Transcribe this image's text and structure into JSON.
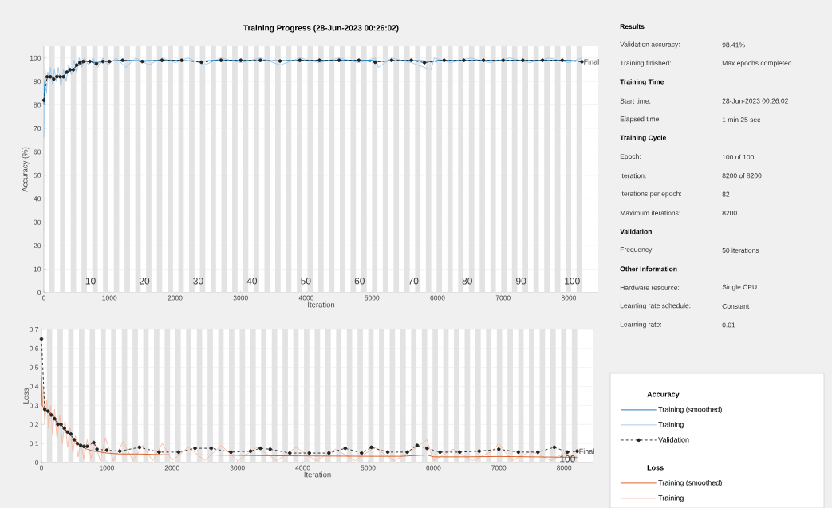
{
  "chart_data": [
    {
      "type": "line",
      "title": "Training Progress (28-Jun-2023 00:26:02)",
      "xlabel": "Iteration",
      "ylabel": "Accuracy (%)",
      "xlim": [
        0,
        8450
      ],
      "ylim": [
        0,
        105
      ],
      "xticks": [
        0,
        1000,
        2000,
        3000,
        4000,
        5000,
        6000,
        7000,
        8000
      ],
      "yticks": [
        0,
        10,
        20,
        30,
        40,
        50,
        60,
        70,
        80,
        90,
        100
      ],
      "grid": "y",
      "legend": "right",
      "legend_title": "Accuracy",
      "bands": [
        {
          "axis": "x",
          "from": 82,
          "to": 164
        },
        {
          "axis": "x",
          "from": 246,
          "to": 328
        },
        {
          "axis": "x",
          "from": 410,
          "to": 492
        },
        {
          "axis": "x",
          "from": 574,
          "to": 656
        },
        {
          "axis": "x",
          "from": 738,
          "to": 820
        },
        {
          "axis": "x",
          "from": 902,
          "to": 984
        },
        {
          "axis": "x",
          "from": 1066,
          "to": 1148
        },
        {
          "axis": "x",
          "from": 1230,
          "to": 1312
        },
        {
          "axis": "x",
          "from": 1394,
          "to": 1476
        },
        {
          "axis": "x",
          "from": 1558,
          "to": 1640
        },
        {
          "axis": "x",
          "from": 1722,
          "to": 1804
        },
        {
          "axis": "x",
          "from": 1886,
          "to": 1968
        },
        {
          "axis": "x",
          "from": 2050,
          "to": 2132
        },
        {
          "axis": "x",
          "from": 2214,
          "to": 2296
        },
        {
          "axis": "x",
          "from": 2378,
          "to": 2460
        },
        {
          "axis": "x",
          "from": 2542,
          "to": 2624
        },
        {
          "axis": "x",
          "from": 2706,
          "to": 2788
        },
        {
          "axis": "x",
          "from": 2870,
          "to": 2952
        },
        {
          "axis": "x",
          "from": 3034,
          "to": 3116
        },
        {
          "axis": "x",
          "from": 3198,
          "to": 3280
        },
        {
          "axis": "x",
          "from": 3362,
          "to": 3444
        },
        {
          "axis": "x",
          "from": 3526,
          "to": 3608
        },
        {
          "axis": "x",
          "from": 3690,
          "to": 3772
        },
        {
          "axis": "x",
          "from": 3854,
          "to": 3936
        },
        {
          "axis": "x",
          "from": 4018,
          "to": 4100
        },
        {
          "axis": "x",
          "from": 4182,
          "to": 4264
        },
        {
          "axis": "x",
          "from": 4346,
          "to": 4428
        },
        {
          "axis": "x",
          "from": 4510,
          "to": 4592
        },
        {
          "axis": "x",
          "from": 4674,
          "to": 4756
        },
        {
          "axis": "x",
          "from": 4838,
          "to": 4920
        },
        {
          "axis": "x",
          "from": 5002,
          "to": 5084
        },
        {
          "axis": "x",
          "from": 5166,
          "to": 5248
        },
        {
          "axis": "x",
          "from": 5330,
          "to": 5412
        },
        {
          "axis": "x",
          "from": 5494,
          "to": 5576
        },
        {
          "axis": "x",
          "from": 5658,
          "to": 5740
        },
        {
          "axis": "x",
          "from": 5822,
          "to": 5904
        },
        {
          "axis": "x",
          "from": 5986,
          "to": 6068
        },
        {
          "axis": "x",
          "from": 6150,
          "to": 6232
        },
        {
          "axis": "x",
          "from": 6314,
          "to": 6396
        },
        {
          "axis": "x",
          "from": 6478,
          "to": 6560
        },
        {
          "axis": "x",
          "from": 6642,
          "to": 6724
        },
        {
          "axis": "x",
          "from": 6806,
          "to": 6888
        },
        {
          "axis": "x",
          "from": 6970,
          "to": 7052
        },
        {
          "axis": "x",
          "from": 7134,
          "to": 7216
        },
        {
          "axis": "x",
          "from": 7298,
          "to": 7380
        },
        {
          "axis": "x",
          "from": 7462,
          "to": 7544
        },
        {
          "axis": "x",
          "from": 7626,
          "to": 7708
        },
        {
          "axis": "x",
          "from": 7790,
          "to": 7872
        },
        {
          "axis": "x",
          "from": 7954,
          "to": 8036
        },
        {
          "axis": "x",
          "from": 8118,
          "to": 8200
        }
      ],
      "annotations": [
        {
          "text": "Final",
          "x": 8200,
          "y": 98.4
        },
        {
          "text": "10",
          "x": 820,
          "y": 5
        },
        {
          "text": "20",
          "x": 1640,
          "y": 5
        },
        {
          "text": "30",
          "x": 2460,
          "y": 5
        },
        {
          "text": "40",
          "x": 3280,
          "y": 5
        },
        {
          "text": "50",
          "x": 4100,
          "y": 5
        },
        {
          "text": "60",
          "x": 4920,
          "y": 5
        },
        {
          "text": "70",
          "x": 5740,
          "y": 5
        },
        {
          "text": "80",
          "x": 6560,
          "y": 5
        },
        {
          "text": "90",
          "x": 7380,
          "y": 5
        },
        {
          "text": "100",
          "x": 8200,
          "y": 5
        }
      ],
      "series": [
        {
          "name": "Training (smoothed)",
          "color": "#0072bd",
          "line_style": "solid",
          "marker": "none",
          "x": [
            0,
            10,
            20,
            50,
            100,
            150,
            200,
            250,
            300,
            350,
            400,
            450,
            500,
            550,
            600,
            650,
            700,
            800,
            900,
            1000,
            1200,
            1500,
            1800,
            2000,
            2400,
            2600,
            3000,
            3500,
            4000,
            4500,
            5000,
            5100,
            5500,
            5800,
            5900,
            6000,
            6500,
            7000,
            7500,
            8000,
            8200
          ],
          "values": [
            80,
            88,
            92,
            91.5,
            92.5,
            91.5,
            93,
            92,
            92.5,
            93.5,
            95,
            95.5,
            96.5,
            97,
            98,
            98.5,
            98.5,
            98,
            98.5,
            98.7,
            99,
            98.8,
            99,
            99,
            98.6,
            99,
            99,
            98.8,
            99,
            99,
            99,
            98.5,
            99,
            98.8,
            98.3,
            99,
            99,
            99,
            99,
            99,
            98.6
          ]
        },
        {
          "name": "Training",
          "color": "#9dc6e8",
          "line_style": "solid",
          "marker": "none",
          "x": [
            0,
            20,
            40,
            60,
            80,
            100,
            130,
            160,
            190,
            220,
            260,
            300,
            340,
            380,
            420,
            460,
            500,
            540,
            580,
            620,
            680,
            750,
            820,
            900,
            980,
            1100,
            1250,
            1400,
            1600,
            1800,
            2000,
            2200,
            2450,
            2700,
            3000,
            3300,
            3600,
            3900,
            4200,
            4500,
            4800,
            5050,
            5100,
            5300,
            5600,
            5900,
            5950,
            6200,
            6500,
            6800,
            7100,
            7400,
            7700,
            8000,
            8200
          ],
          "values": [
            66,
            95,
            85,
            94,
            90,
            96,
            89,
            95,
            90,
            96,
            88,
            95,
            90,
            97,
            93,
            99,
            94,
            100,
            96,
            100,
            97,
            100,
            96,
            100,
            97,
            100,
            96,
            100,
            97,
            100,
            98,
            100,
            97,
            100,
            98,
            100,
            97,
            100,
            98,
            100,
            98,
            100,
            96,
            100,
            98,
            95,
            100,
            98,
            100,
            98,
            100,
            98,
            100,
            98,
            100
          ]
        },
        {
          "name": "Validation",
          "color": "#222222",
          "line_style": "dashed",
          "marker": "circle",
          "x": [
            0,
            50,
            100,
            150,
            200,
            250,
            300,
            350,
            400,
            450,
            500,
            550,
            600,
            700,
            800,
            900,
            1000,
            1200,
            1500,
            1800,
            2100,
            2400,
            2700,
            3000,
            3300,
            3600,
            3900,
            4200,
            4500,
            4800,
            5050,
            5300,
            5600,
            5800,
            6100,
            6400,
            6700,
            7000,
            7300,
            7600,
            7900,
            8200
          ],
          "values": [
            82,
            92,
            92,
            91,
            92,
            92,
            92,
            94,
            95,
            95,
            97,
            98,
            98.5,
            98.5,
            97.5,
            98.5,
            98.5,
            99,
            98.5,
            99,
            99,
            98.2,
            99,
            99,
            99,
            98.7,
            99,
            99,
            99,
            99,
            98.2,
            99,
            99,
            98,
            99,
            99,
            99,
            99,
            99,
            99,
            99,
            98.4
          ]
        }
      ]
    },
    {
      "type": "line",
      "xlabel": "Iteration",
      "ylabel": "Loss",
      "xlim": [
        0,
        8450
      ],
      "ylim": [
        0,
        0.7
      ],
      "xticks": [
        0,
        1000,
        2000,
        3000,
        4000,
        5000,
        6000,
        7000,
        8000
      ],
      "yticks": [
        0,
        0.1,
        0.2,
        0.3,
        0.4,
        0.5,
        0.6,
        0.7
      ],
      "grid": "y",
      "legend": "right",
      "legend_title": "Loss",
      "bands": [
        {
          "axis": "x",
          "from": 82,
          "to": 164
        },
        {
          "axis": "x",
          "from": 246,
          "to": 328
        },
        {
          "axis": "x",
          "from": 410,
          "to": 492
        },
        {
          "axis": "x",
          "from": 574,
          "to": 656
        },
        {
          "axis": "x",
          "from": 738,
          "to": 820
        },
        {
          "axis": "x",
          "from": 902,
          "to": 984
        },
        {
          "axis": "x",
          "from": 1066,
          "to": 1148
        },
        {
          "axis": "x",
          "from": 1230,
          "to": 1312
        },
        {
          "axis": "x",
          "from": 1394,
          "to": 1476
        },
        {
          "axis": "x",
          "from": 1558,
          "to": 1640
        },
        {
          "axis": "x",
          "from": 1722,
          "to": 1804
        },
        {
          "axis": "x",
          "from": 1886,
          "to": 1968
        },
        {
          "axis": "x",
          "from": 2050,
          "to": 2132
        },
        {
          "axis": "x",
          "from": 2214,
          "to": 2296
        },
        {
          "axis": "x",
          "from": 2378,
          "to": 2460
        },
        {
          "axis": "x",
          "from": 2542,
          "to": 2624
        },
        {
          "axis": "x",
          "from": 2706,
          "to": 2788
        },
        {
          "axis": "x",
          "from": 2870,
          "to": 2952
        },
        {
          "axis": "x",
          "from": 3034,
          "to": 3116
        },
        {
          "axis": "x",
          "from": 3198,
          "to": 3280
        },
        {
          "axis": "x",
          "from": 3362,
          "to": 3444
        },
        {
          "axis": "x",
          "from": 3526,
          "to": 3608
        },
        {
          "axis": "x",
          "from": 3690,
          "to": 3772
        },
        {
          "axis": "x",
          "from": 3854,
          "to": 3936
        },
        {
          "axis": "x",
          "from": 4018,
          "to": 4100
        },
        {
          "axis": "x",
          "from": 4182,
          "to": 4264
        },
        {
          "axis": "x",
          "from": 4346,
          "to": 4428
        },
        {
          "axis": "x",
          "from": 4510,
          "to": 4592
        },
        {
          "axis": "x",
          "from": 4674,
          "to": 4756
        },
        {
          "axis": "x",
          "from": 4838,
          "to": 4920
        },
        {
          "axis": "x",
          "from": 5002,
          "to": 5084
        },
        {
          "axis": "x",
          "from": 5166,
          "to": 5248
        },
        {
          "axis": "x",
          "from": 5330,
          "to": 5412
        },
        {
          "axis": "x",
          "from": 5494,
          "to": 5576
        },
        {
          "axis": "x",
          "from": 5658,
          "to": 5740
        },
        {
          "axis": "x",
          "from": 5822,
          "to": 5904
        },
        {
          "axis": "x",
          "from": 5986,
          "to": 6068
        },
        {
          "axis": "x",
          "from": 6150,
          "to": 6232
        },
        {
          "axis": "x",
          "from": 6314,
          "to": 6396
        },
        {
          "axis": "x",
          "from": 6478,
          "to": 6560
        },
        {
          "axis": "x",
          "from": 6642,
          "to": 6724
        },
        {
          "axis": "x",
          "from": 6806,
          "to": 6888
        },
        {
          "axis": "x",
          "from": 6970,
          "to": 7052
        },
        {
          "axis": "x",
          "from": 7134,
          "to": 7216
        },
        {
          "axis": "x",
          "from": 7298,
          "to": 7380
        },
        {
          "axis": "x",
          "from": 7462,
          "to": 7544
        },
        {
          "axis": "x",
          "from": 7626,
          "to": 7708
        },
        {
          "axis": "x",
          "from": 7790,
          "to": 7872
        },
        {
          "axis": "x",
          "from": 7954,
          "to": 8036
        },
        {
          "axis": "x",
          "from": 8118,
          "to": 8200
        }
      ],
      "annotations": [
        {
          "text": "Final",
          "x": 8200,
          "y": 0.06
        },
        {
          "text": "100",
          "x": 8200,
          "y": 0.02
        }
      ],
      "series": [
        {
          "name": "Training (smoothed)",
          "color": "#d95319",
          "line_style": "solid",
          "marker": "none",
          "x": [
            0,
            10,
            50,
            100,
            150,
            200,
            250,
            300,
            350,
            400,
            450,
            500,
            550,
            600,
            700,
            800,
            1000,
            1200,
            1500,
            2000,
            2500,
            3000,
            3500,
            4000,
            4500,
            5000,
            5500,
            5900,
            6000,
            6500,
            7000,
            7500,
            8000,
            8200
          ],
          "values": [
            0.45,
            0.3,
            0.28,
            0.27,
            0.26,
            0.24,
            0.21,
            0.2,
            0.18,
            0.16,
            0.14,
            0.12,
            0.1,
            0.085,
            0.07,
            0.06,
            0.05,
            0.045,
            0.045,
            0.04,
            0.04,
            0.038,
            0.036,
            0.035,
            0.034,
            0.033,
            0.033,
            0.04,
            0.03,
            0.03,
            0.032,
            0.03,
            0.028,
            0.028
          ]
        },
        {
          "name": "Training",
          "color": "#f4b9a0",
          "line_style": "solid",
          "marker": "none",
          "x": [
            0,
            15,
            30,
            50,
            80,
            110,
            140,
            170,
            200,
            240,
            280,
            320,
            360,
            400,
            440,
            480,
            520,
            560,
            600,
            650,
            700,
            760,
            820,
            900,
            980,
            1100,
            1250,
            1400,
            1550,
            1700,
            1850,
            2000,
            2250,
            2500,
            2750,
            3000,
            3300,
            3600,
            3900,
            4200,
            4500,
            4800,
            5100,
            5400,
            5700,
            5900,
            6000,
            6300,
            6600,
            6900,
            7000,
            7200,
            7500,
            7800,
            8000,
            8200
          ],
          "values": [
            0.62,
            0.3,
            0.4,
            0.2,
            0.33,
            0.18,
            0.3,
            0.15,
            0.28,
            0.12,
            0.25,
            0.1,
            0.22,
            0.08,
            0.18,
            0.05,
            0.14,
            0.03,
            0.1,
            0.02,
            0.12,
            0.02,
            0.1,
            0.01,
            0.13,
            0.01,
            0.11,
            0.01,
            0.09,
            0.01,
            0.1,
            0.01,
            0.08,
            0.01,
            0.09,
            0.01,
            0.08,
            0.01,
            0.08,
            0.01,
            0.07,
            0.01,
            0.08,
            0.01,
            0.07,
            0.12,
            0.01,
            0.07,
            0.01,
            0.06,
            0.1,
            0.01,
            0.06,
            0.01,
            0.05,
            0.02
          ]
        },
        {
          "color": "#222222",
          "line_style": "dashed",
          "marker": "circle",
          "x": [
            0,
            50,
            100,
            150,
            200,
            250,
            300,
            350,
            400,
            450,
            500,
            550,
            600,
            650,
            700,
            800,
            850,
            1000,
            1200,
            1500,
            1800,
            2100,
            2350,
            2600,
            2900,
            3200,
            3350,
            3500,
            3800,
            4100,
            4400,
            4650,
            4900,
            5050,
            5300,
            5600,
            5750,
            5900,
            6100,
            6400,
            6700,
            7000,
            7300,
            7600,
            7850,
            8050,
            8200
          ],
          "values": [
            0.65,
            0.28,
            0.27,
            0.25,
            0.23,
            0.2,
            0.2,
            0.18,
            0.16,
            0.15,
            0.12,
            0.1,
            0.09,
            0.085,
            0.085,
            0.105,
            0.07,
            0.065,
            0.06,
            0.08,
            0.055,
            0.055,
            0.075,
            0.075,
            0.055,
            0.06,
            0.075,
            0.07,
            0.05,
            0.05,
            0.05,
            0.075,
            0.05,
            0.08,
            0.055,
            0.055,
            0.09,
            0.075,
            0.055,
            0.055,
            0.06,
            0.07,
            0.055,
            0.055,
            0.08,
            0.055,
            0.06
          ]
        }
      ]
    },
    {
      "type": "other",
      "annotations": [
        "Results",
        "Validation accuracy:",
        "98.41%",
        "Training finished:",
        "Max epochs completed",
        "Training Time",
        "Start time:",
        "28-Jun-2023 00:26:02",
        "Elapsed time:",
        "1 min 25 sec",
        "Training Cycle",
        "Epoch:",
        "100 of 100",
        "Iteration:",
        "8200 of 8200",
        "Iterations per epoch:",
        "82",
        "Maximum iterations:",
        "8200",
        "Validation",
        "Frequency:",
        "50 iterations",
        "Other Information",
        "Hardware resource:",
        "Single CPU",
        "Learning rate schedule:",
        "Constant",
        "Learning rate:",
        "0.01"
      ]
    }
  ]
}
